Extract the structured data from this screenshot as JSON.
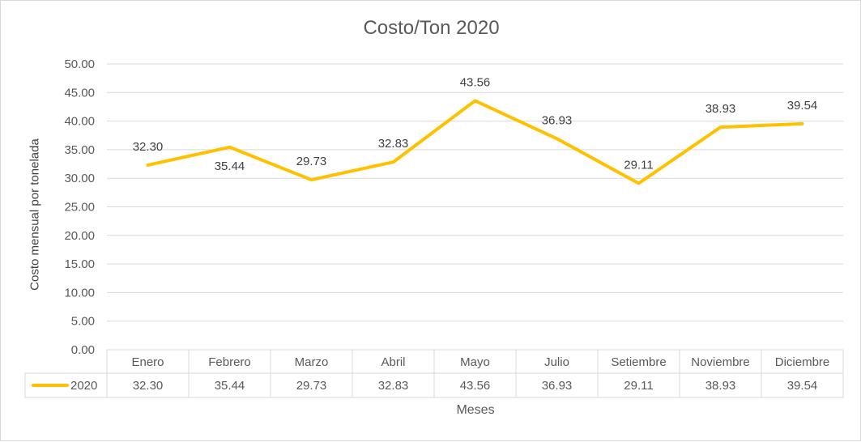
{
  "chart_data": {
    "type": "line",
    "title": "Costo/Ton 2020",
    "xlabel": "Meses",
    "ylabel": "Costo mensual por tonelada",
    "ylim": [
      0,
      50
    ],
    "yticks": [
      "0.00",
      "5.00",
      "10.00",
      "15.00",
      "20.00",
      "25.00",
      "30.00",
      "35.00",
      "40.00",
      "45.00",
      "50.00"
    ],
    "categories": [
      "Enero",
      "Febrero",
      "Marzo",
      "Abril",
      "Mayo",
      "Julio",
      "Setiembre",
      "Noviembre",
      "Diciembre"
    ],
    "series": [
      {
        "name": "2020",
        "color": "#FFC000",
        "values": [
          32.3,
          35.44,
          29.73,
          32.83,
          43.56,
          36.93,
          29.11,
          38.93,
          39.54
        ],
        "labels": [
          "32.30",
          "35.44",
          "29.73",
          "32.83",
          "43.56",
          "36.93",
          "29.11",
          "38.93",
          "39.54"
        ]
      }
    ],
    "grid": true,
    "data_table": true
  }
}
